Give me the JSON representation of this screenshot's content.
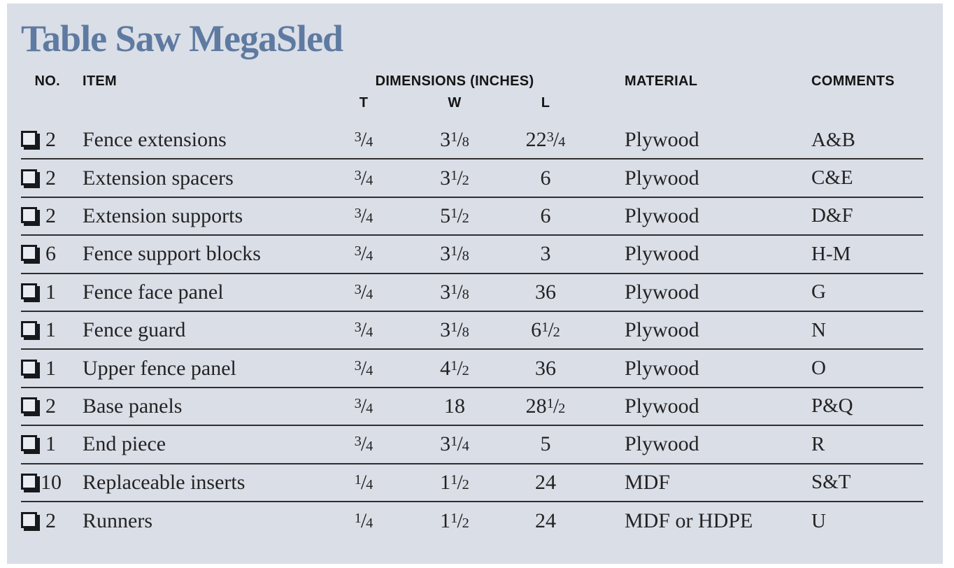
{
  "title": "Table Saw MegaSled",
  "colors": {
    "card_background": "#dadee7",
    "title_text": "#5e7aa1",
    "body_text": "#232323",
    "rule_line": "#2e2e2e"
  },
  "header": {
    "no": "NO.",
    "item": "ITEM",
    "dimensions": "DIMENSIONS (INCHES)",
    "t": "T",
    "w": "W",
    "l": "L",
    "material": "MATERIAL",
    "comments": "COMMENTS"
  },
  "checkbox_icon": "lower-right-shadowed-white-square",
  "rows": [
    {
      "qty": "2",
      "item": "Fence extensions",
      "t": "3/4",
      "w": "3 1/8",
      "l": "22 3/4",
      "material": "Plywood",
      "comments": "A&B"
    },
    {
      "qty": "2",
      "item": "Extension spacers",
      "t": "3/4",
      "w": "3 1/2",
      "l": "6",
      "material": "Plywood",
      "comments": "C&E"
    },
    {
      "qty": "2",
      "item": "Extension supports",
      "t": "3/4",
      "w": "5 1/2",
      "l": "6",
      "material": "Plywood",
      "comments": "D&F"
    },
    {
      "qty": "6",
      "item": "Fence support blocks",
      "t": "3/4",
      "w": "3 1/8",
      "l": "3",
      "material": "Plywood",
      "comments": "H-M"
    },
    {
      "qty": "1",
      "item": "Fence face panel",
      "t": "3/4",
      "w": "3 1/8",
      "l": "36",
      "material": "Plywood",
      "comments": "G"
    },
    {
      "qty": "1",
      "item": "Fence guard",
      "t": "3/4",
      "w": "3 1/8",
      "l": "6 1/2",
      "material": "Plywood",
      "comments": "N"
    },
    {
      "qty": "1",
      "item": "Upper fence panel",
      "t": "3/4",
      "w": "4 1/2",
      "l": "36",
      "material": "Plywood",
      "comments": "O"
    },
    {
      "qty": "2",
      "item": "Base panels",
      "t": "3/4",
      "w": "18",
      "l": "28 1/2",
      "material": "Plywood",
      "comments": "P&Q"
    },
    {
      "qty": "1",
      "item": "End piece",
      "t": "3/4",
      "w": "3 1/4",
      "l": "5",
      "material": "Plywood",
      "comments": "R"
    },
    {
      "qty": "10",
      "item": "Replaceable inserts",
      "t": "1/4",
      "w": "1 1/2",
      "l": "24",
      "material": "MDF",
      "comments": "S&T"
    },
    {
      "qty": "2",
      "item": "Runners",
      "t": "1/4",
      "w": "1 1/2",
      "l": "24",
      "material": "MDF or HDPE",
      "comments": "U"
    }
  ]
}
